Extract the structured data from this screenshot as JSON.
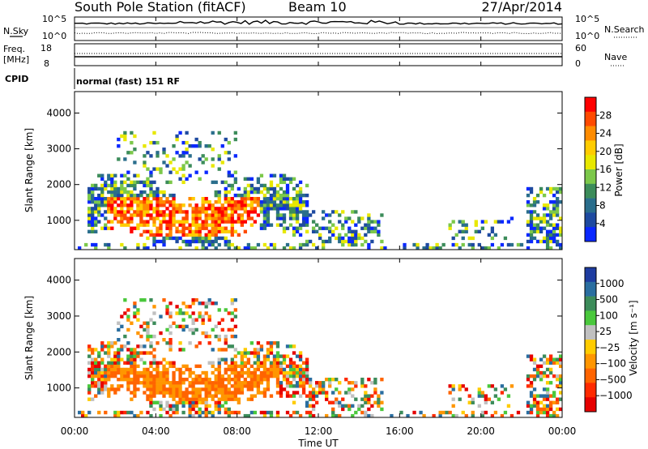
{
  "header": {
    "station": "South Pole Station (fitACF)",
    "beam": "Beam 10",
    "date": "27/Apr/2014"
  },
  "status_panels": {
    "nsky_label": "N.Sky",
    "nsearch_label": "N.Search",
    "noise_ticks_left": [
      "10^5",
      "10^0"
    ],
    "noise_ticks_right": [
      "10^5",
      "10^0"
    ],
    "freq_label_1": "Freq.",
    "freq_label_2": "[MHz]",
    "freq_ticks": [
      "18",
      "8"
    ],
    "nave_label": "Nave",
    "nave_ticks": [
      "60",
      "0"
    ],
    "cpid_label": "CPID",
    "cpid_value": "normal (fast) 151 RF"
  },
  "chart_data": [
    {
      "type": "heatmap",
      "quantity": "power",
      "ylabel": "Slant Range [km]",
      "ylim": [
        180,
        4600
      ],
      "yticks": [
        "1000",
        "2000",
        "3000",
        "4000"
      ],
      "xlim": [
        "00:00",
        "24:00"
      ],
      "colorbar": {
        "label": "Power [dB]",
        "ticks": [
          "28",
          "24",
          "20",
          "16",
          "12",
          "8",
          "4"
        ],
        "colors": [
          "#ff0000",
          "#ff4a00",
          "#ff8c00",
          "#ffcc00",
          "#e8e800",
          "#7cc84a",
          "#3c8c5a",
          "#2a6e8c",
          "#1e4aa0",
          "#0a28ff"
        ]
      }
    },
    {
      "type": "heatmap",
      "quantity": "velocity",
      "ylabel": "Slant Range [km]",
      "ylim": [
        180,
        4600
      ],
      "yticks": [
        "1000",
        "2000",
        "3000",
        "4000"
      ],
      "xlim": [
        "00:00",
        "24:00"
      ],
      "colorbar": {
        "label": "Velocity [m s⁻¹]",
        "ticks": [
          "1000",
          "500",
          "100",
          "25",
          "−25",
          "−100",
          "−500",
          "−1000"
        ],
        "colors": [
          "#1e3ca0",
          "#2a6ea0",
          "#3c8c5a",
          "#4ac83c",
          "#c0c0c0",
          "#ffcc00",
          "#ff9600",
          "#ff6400",
          "#ff2a00",
          "#e60000"
        ]
      }
    }
  ],
  "time_axis": {
    "label": "Time UT",
    "ticks": [
      "00:00",
      "04:00",
      "08:00",
      "12:00",
      "16:00",
      "20:00",
      "00:00"
    ]
  }
}
